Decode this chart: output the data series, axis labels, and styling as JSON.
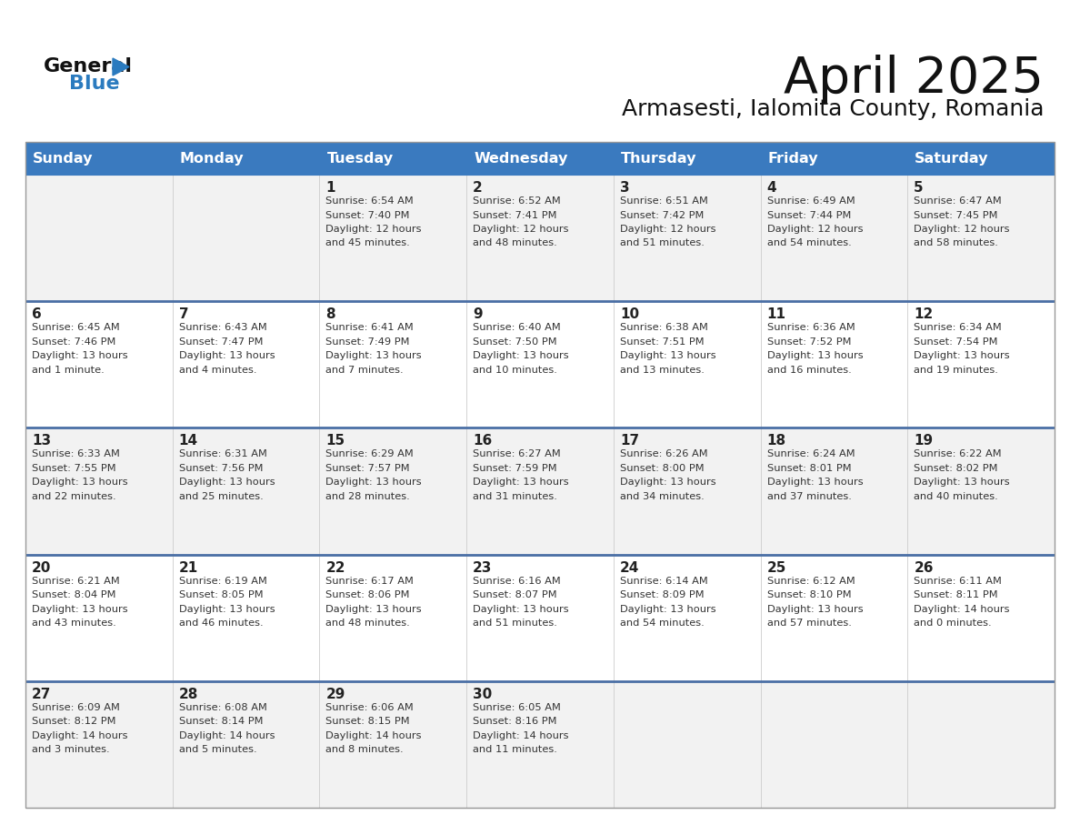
{
  "title": "April 2025",
  "subtitle": "Armasesti, Ialomita County, Romania",
  "header_color": "#3a7abf",
  "header_text_color": "#ffffff",
  "row_sep_color": "#4a6fa5",
  "cell_bg_even": "#f2f2f2",
  "cell_bg_odd": "#ffffff",
  "text_color": "#333333",
  "day_number_color": "#222222",
  "logo_black": "#111111",
  "logo_blue": "#2b7bbf",
  "day_headers": [
    "Sunday",
    "Monday",
    "Tuesday",
    "Wednesday",
    "Thursday",
    "Friday",
    "Saturday"
  ],
  "weeks": [
    [
      {
        "day": "",
        "info": ""
      },
      {
        "day": "",
        "info": ""
      },
      {
        "day": "1",
        "info": "Sunrise: 6:54 AM\nSunset: 7:40 PM\nDaylight: 12 hours\nand 45 minutes."
      },
      {
        "day": "2",
        "info": "Sunrise: 6:52 AM\nSunset: 7:41 PM\nDaylight: 12 hours\nand 48 minutes."
      },
      {
        "day": "3",
        "info": "Sunrise: 6:51 AM\nSunset: 7:42 PM\nDaylight: 12 hours\nand 51 minutes."
      },
      {
        "day": "4",
        "info": "Sunrise: 6:49 AM\nSunset: 7:44 PM\nDaylight: 12 hours\nand 54 minutes."
      },
      {
        "day": "5",
        "info": "Sunrise: 6:47 AM\nSunset: 7:45 PM\nDaylight: 12 hours\nand 58 minutes."
      }
    ],
    [
      {
        "day": "6",
        "info": "Sunrise: 6:45 AM\nSunset: 7:46 PM\nDaylight: 13 hours\nand 1 minute."
      },
      {
        "day": "7",
        "info": "Sunrise: 6:43 AM\nSunset: 7:47 PM\nDaylight: 13 hours\nand 4 minutes."
      },
      {
        "day": "8",
        "info": "Sunrise: 6:41 AM\nSunset: 7:49 PM\nDaylight: 13 hours\nand 7 minutes."
      },
      {
        "day": "9",
        "info": "Sunrise: 6:40 AM\nSunset: 7:50 PM\nDaylight: 13 hours\nand 10 minutes."
      },
      {
        "day": "10",
        "info": "Sunrise: 6:38 AM\nSunset: 7:51 PM\nDaylight: 13 hours\nand 13 minutes."
      },
      {
        "day": "11",
        "info": "Sunrise: 6:36 AM\nSunset: 7:52 PM\nDaylight: 13 hours\nand 16 minutes."
      },
      {
        "day": "12",
        "info": "Sunrise: 6:34 AM\nSunset: 7:54 PM\nDaylight: 13 hours\nand 19 minutes."
      }
    ],
    [
      {
        "day": "13",
        "info": "Sunrise: 6:33 AM\nSunset: 7:55 PM\nDaylight: 13 hours\nand 22 minutes."
      },
      {
        "day": "14",
        "info": "Sunrise: 6:31 AM\nSunset: 7:56 PM\nDaylight: 13 hours\nand 25 minutes."
      },
      {
        "day": "15",
        "info": "Sunrise: 6:29 AM\nSunset: 7:57 PM\nDaylight: 13 hours\nand 28 minutes."
      },
      {
        "day": "16",
        "info": "Sunrise: 6:27 AM\nSunset: 7:59 PM\nDaylight: 13 hours\nand 31 minutes."
      },
      {
        "day": "17",
        "info": "Sunrise: 6:26 AM\nSunset: 8:00 PM\nDaylight: 13 hours\nand 34 minutes."
      },
      {
        "day": "18",
        "info": "Sunrise: 6:24 AM\nSunset: 8:01 PM\nDaylight: 13 hours\nand 37 minutes."
      },
      {
        "day": "19",
        "info": "Sunrise: 6:22 AM\nSunset: 8:02 PM\nDaylight: 13 hours\nand 40 minutes."
      }
    ],
    [
      {
        "day": "20",
        "info": "Sunrise: 6:21 AM\nSunset: 8:04 PM\nDaylight: 13 hours\nand 43 minutes."
      },
      {
        "day": "21",
        "info": "Sunrise: 6:19 AM\nSunset: 8:05 PM\nDaylight: 13 hours\nand 46 minutes."
      },
      {
        "day": "22",
        "info": "Sunrise: 6:17 AM\nSunset: 8:06 PM\nDaylight: 13 hours\nand 48 minutes."
      },
      {
        "day": "23",
        "info": "Sunrise: 6:16 AM\nSunset: 8:07 PM\nDaylight: 13 hours\nand 51 minutes."
      },
      {
        "day": "24",
        "info": "Sunrise: 6:14 AM\nSunset: 8:09 PM\nDaylight: 13 hours\nand 54 minutes."
      },
      {
        "day": "25",
        "info": "Sunrise: 6:12 AM\nSunset: 8:10 PM\nDaylight: 13 hours\nand 57 minutes."
      },
      {
        "day": "26",
        "info": "Sunrise: 6:11 AM\nSunset: 8:11 PM\nDaylight: 14 hours\nand 0 minutes."
      }
    ],
    [
      {
        "day": "27",
        "info": "Sunrise: 6:09 AM\nSunset: 8:12 PM\nDaylight: 14 hours\nand 3 minutes."
      },
      {
        "day": "28",
        "info": "Sunrise: 6:08 AM\nSunset: 8:14 PM\nDaylight: 14 hours\nand 5 minutes."
      },
      {
        "day": "29",
        "info": "Sunrise: 6:06 AM\nSunset: 8:15 PM\nDaylight: 14 hours\nand 8 minutes."
      },
      {
        "day": "30",
        "info": "Sunrise: 6:05 AM\nSunset: 8:16 PM\nDaylight: 14 hours\nand 11 minutes."
      },
      {
        "day": "",
        "info": ""
      },
      {
        "day": "",
        "info": ""
      },
      {
        "day": "",
        "info": ""
      }
    ]
  ]
}
